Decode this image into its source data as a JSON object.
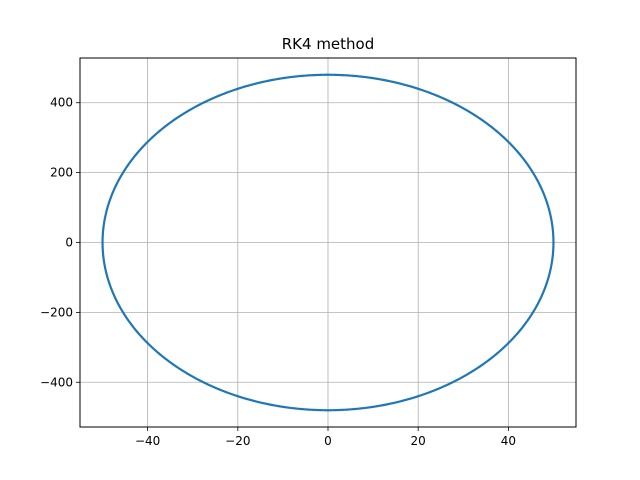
{
  "chart_data": {
    "type": "line",
    "title": "RK4 method",
    "xlabel": "",
    "ylabel": "",
    "xlim": [
      -55,
      55
    ],
    "ylim": [
      -528,
      528
    ],
    "x_ticks": [
      -40,
      -20,
      0,
      20,
      40
    ],
    "y_ticks": [
      -400,
      -200,
      0,
      200,
      400
    ],
    "x_tick_labels": [
      "−40",
      "−20",
      "0",
      "20",
      "40"
    ],
    "y_tick_labels": [
      "−400",
      "−200",
      "0",
      "200",
      "400"
    ],
    "grid": true,
    "legend": "none",
    "series": [
      {
        "color": "#1f77b4",
        "shape": "ellipse",
        "center": [
          0,
          0
        ],
        "semi_axis_x": 50,
        "semi_axis_y": 480
      }
    ]
  }
}
